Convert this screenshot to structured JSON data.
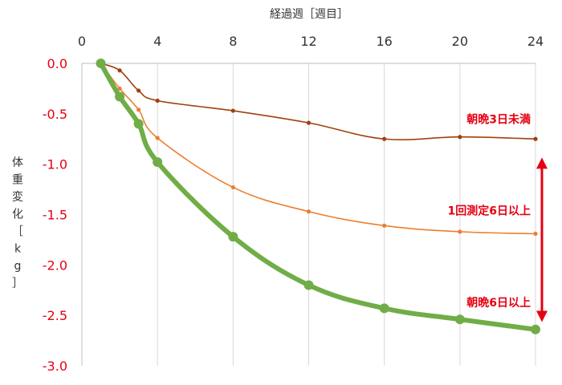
{
  "colors": {
    "grid": "#d9d9d9",
    "axis": "#bfbfbf",
    "tick_x": "#333333",
    "tick_y": "#e60012",
    "label": "#e60012",
    "arrow": "#e60012"
  },
  "chart_data": {
    "type": "line",
    "xlabel": "経過週［週目］",
    "ylabel": "体重変化［kg］",
    "xlim": [
      0,
      24
    ],
    "ylim": [
      -3.0,
      0.0
    ],
    "x_axis_position": "top",
    "grid": {
      "vertical": true,
      "horizontal": false
    },
    "x_ticks": [
      0,
      4,
      8,
      12,
      16,
      20,
      24
    ],
    "x_tick_labels": [
      "0",
      "4",
      "8",
      "12",
      "16",
      "20",
      "24"
    ],
    "y_ticks": [
      0.0,
      -0.5,
      -1.0,
      -1.5,
      -2.0,
      -2.5,
      -3.0
    ],
    "y_tick_labels": [
      "0.0",
      "-0.5",
      "-1.0",
      "-1.5",
      "-2.0",
      "-2.5",
      "-3.0"
    ],
    "series": [
      {
        "name": "朝晩3日未満",
        "color": "#a0410d",
        "style": "thin",
        "points": [
          {
            "x": 1,
            "y": 0.0
          },
          {
            "x": 2,
            "y": -0.07
          },
          {
            "x": 3,
            "y": -0.27
          },
          {
            "x": 4,
            "y": -0.37
          },
          {
            "x": 8,
            "y": -0.47
          },
          {
            "x": 12,
            "y": -0.59
          },
          {
            "x": 16,
            "y": -0.75
          },
          {
            "x": 20,
            "y": -0.73
          },
          {
            "x": 24,
            "y": -0.75
          }
        ]
      },
      {
        "name": "1回測定6日以上",
        "color": "#ed7d31",
        "style": "thin",
        "points": [
          {
            "x": 1,
            "y": 0.0
          },
          {
            "x": 2,
            "y": -0.25
          },
          {
            "x": 3,
            "y": -0.46
          },
          {
            "x": 4,
            "y": -0.74
          },
          {
            "x": 8,
            "y": -1.23
          },
          {
            "x": 12,
            "y": -1.47
          },
          {
            "x": 16,
            "y": -1.61
          },
          {
            "x": 20,
            "y": -1.67
          },
          {
            "x": 24,
            "y": -1.69
          }
        ]
      },
      {
        "name": "朝晩6日以上",
        "color": "#70ad47",
        "style": "thick",
        "points": [
          {
            "x": 1,
            "y": 0.0
          },
          {
            "x": 2,
            "y": -0.33
          },
          {
            "x": 3,
            "y": -0.6
          },
          {
            "x": 4,
            "y": -0.98
          },
          {
            "x": 8,
            "y": -1.72
          },
          {
            "x": 12,
            "y": -2.2
          },
          {
            "x": 16,
            "y": -2.43
          },
          {
            "x": 20,
            "y": -2.54
          },
          {
            "x": 24,
            "y": -2.64
          }
        ]
      }
    ],
    "annotations": {
      "arrow": {
        "x": 24,
        "y_from": -0.95,
        "y_to": -2.55
      }
    }
  }
}
